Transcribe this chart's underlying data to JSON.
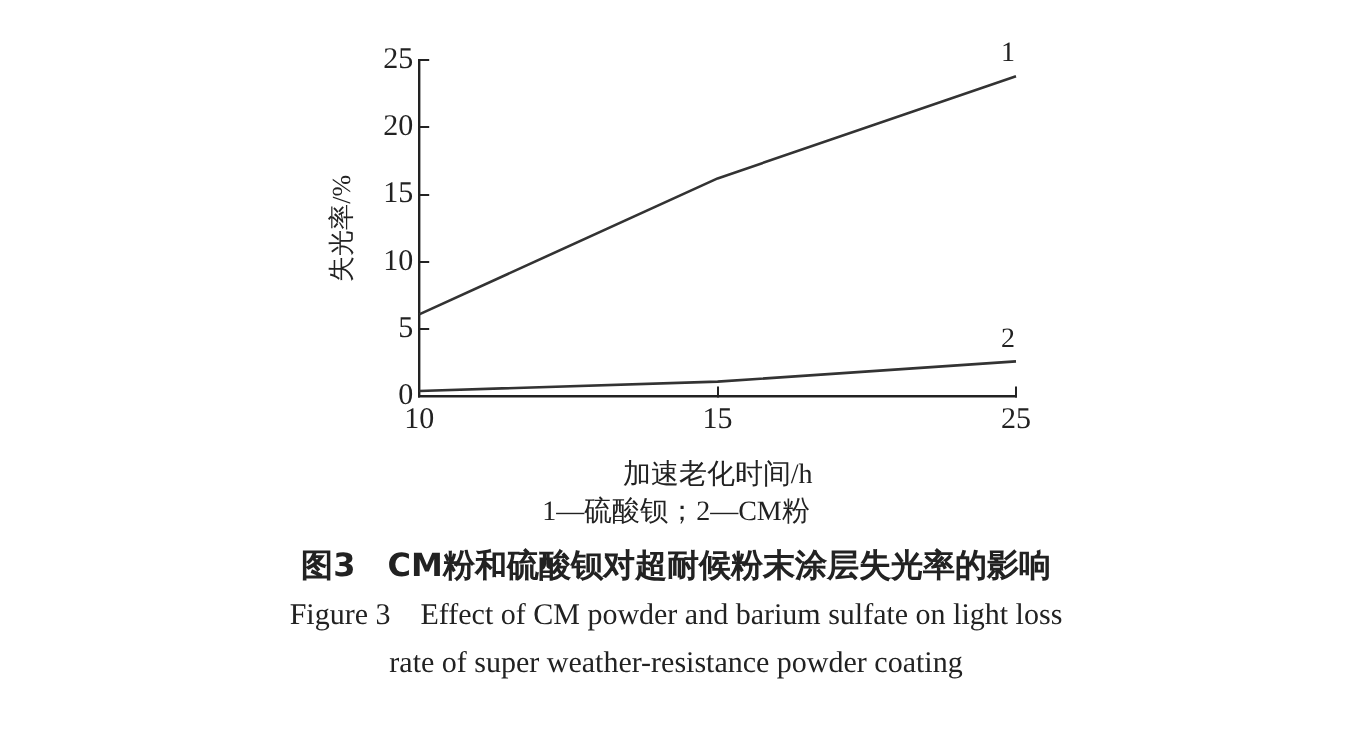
{
  "chart_data": {
    "type": "line",
    "title": "图3　CM粉和硫酸钡对超耐候粉末涂层失光率的影响",
    "subtitle": "Figure 3　Effect of CM powder and barium sulfate on light loss rate of super weather-resistance powder coating",
    "xlabel": "加速老化时间/h",
    "ylabel": "失光率/%",
    "categories": [
      "10",
      "15",
      "25"
    ],
    "series": [
      {
        "name": "1",
        "color": "#333333",
        "values": [
          6.1,
          16.2,
          23.8
        ]
      },
      {
        "name": "2",
        "color": "#333333",
        "values": [
          0.4,
          1.1,
          2.6
        ]
      }
    ],
    "ylim": [
      0,
      25
    ],
    "yticks": [
      0,
      5,
      10,
      15,
      20,
      25
    ],
    "grid": false,
    "legend": false,
    "marker": "none",
    "line_style": "solid",
    "annotations": [
      "1—硫酸钡；2—CM粉"
    ]
  }
}
